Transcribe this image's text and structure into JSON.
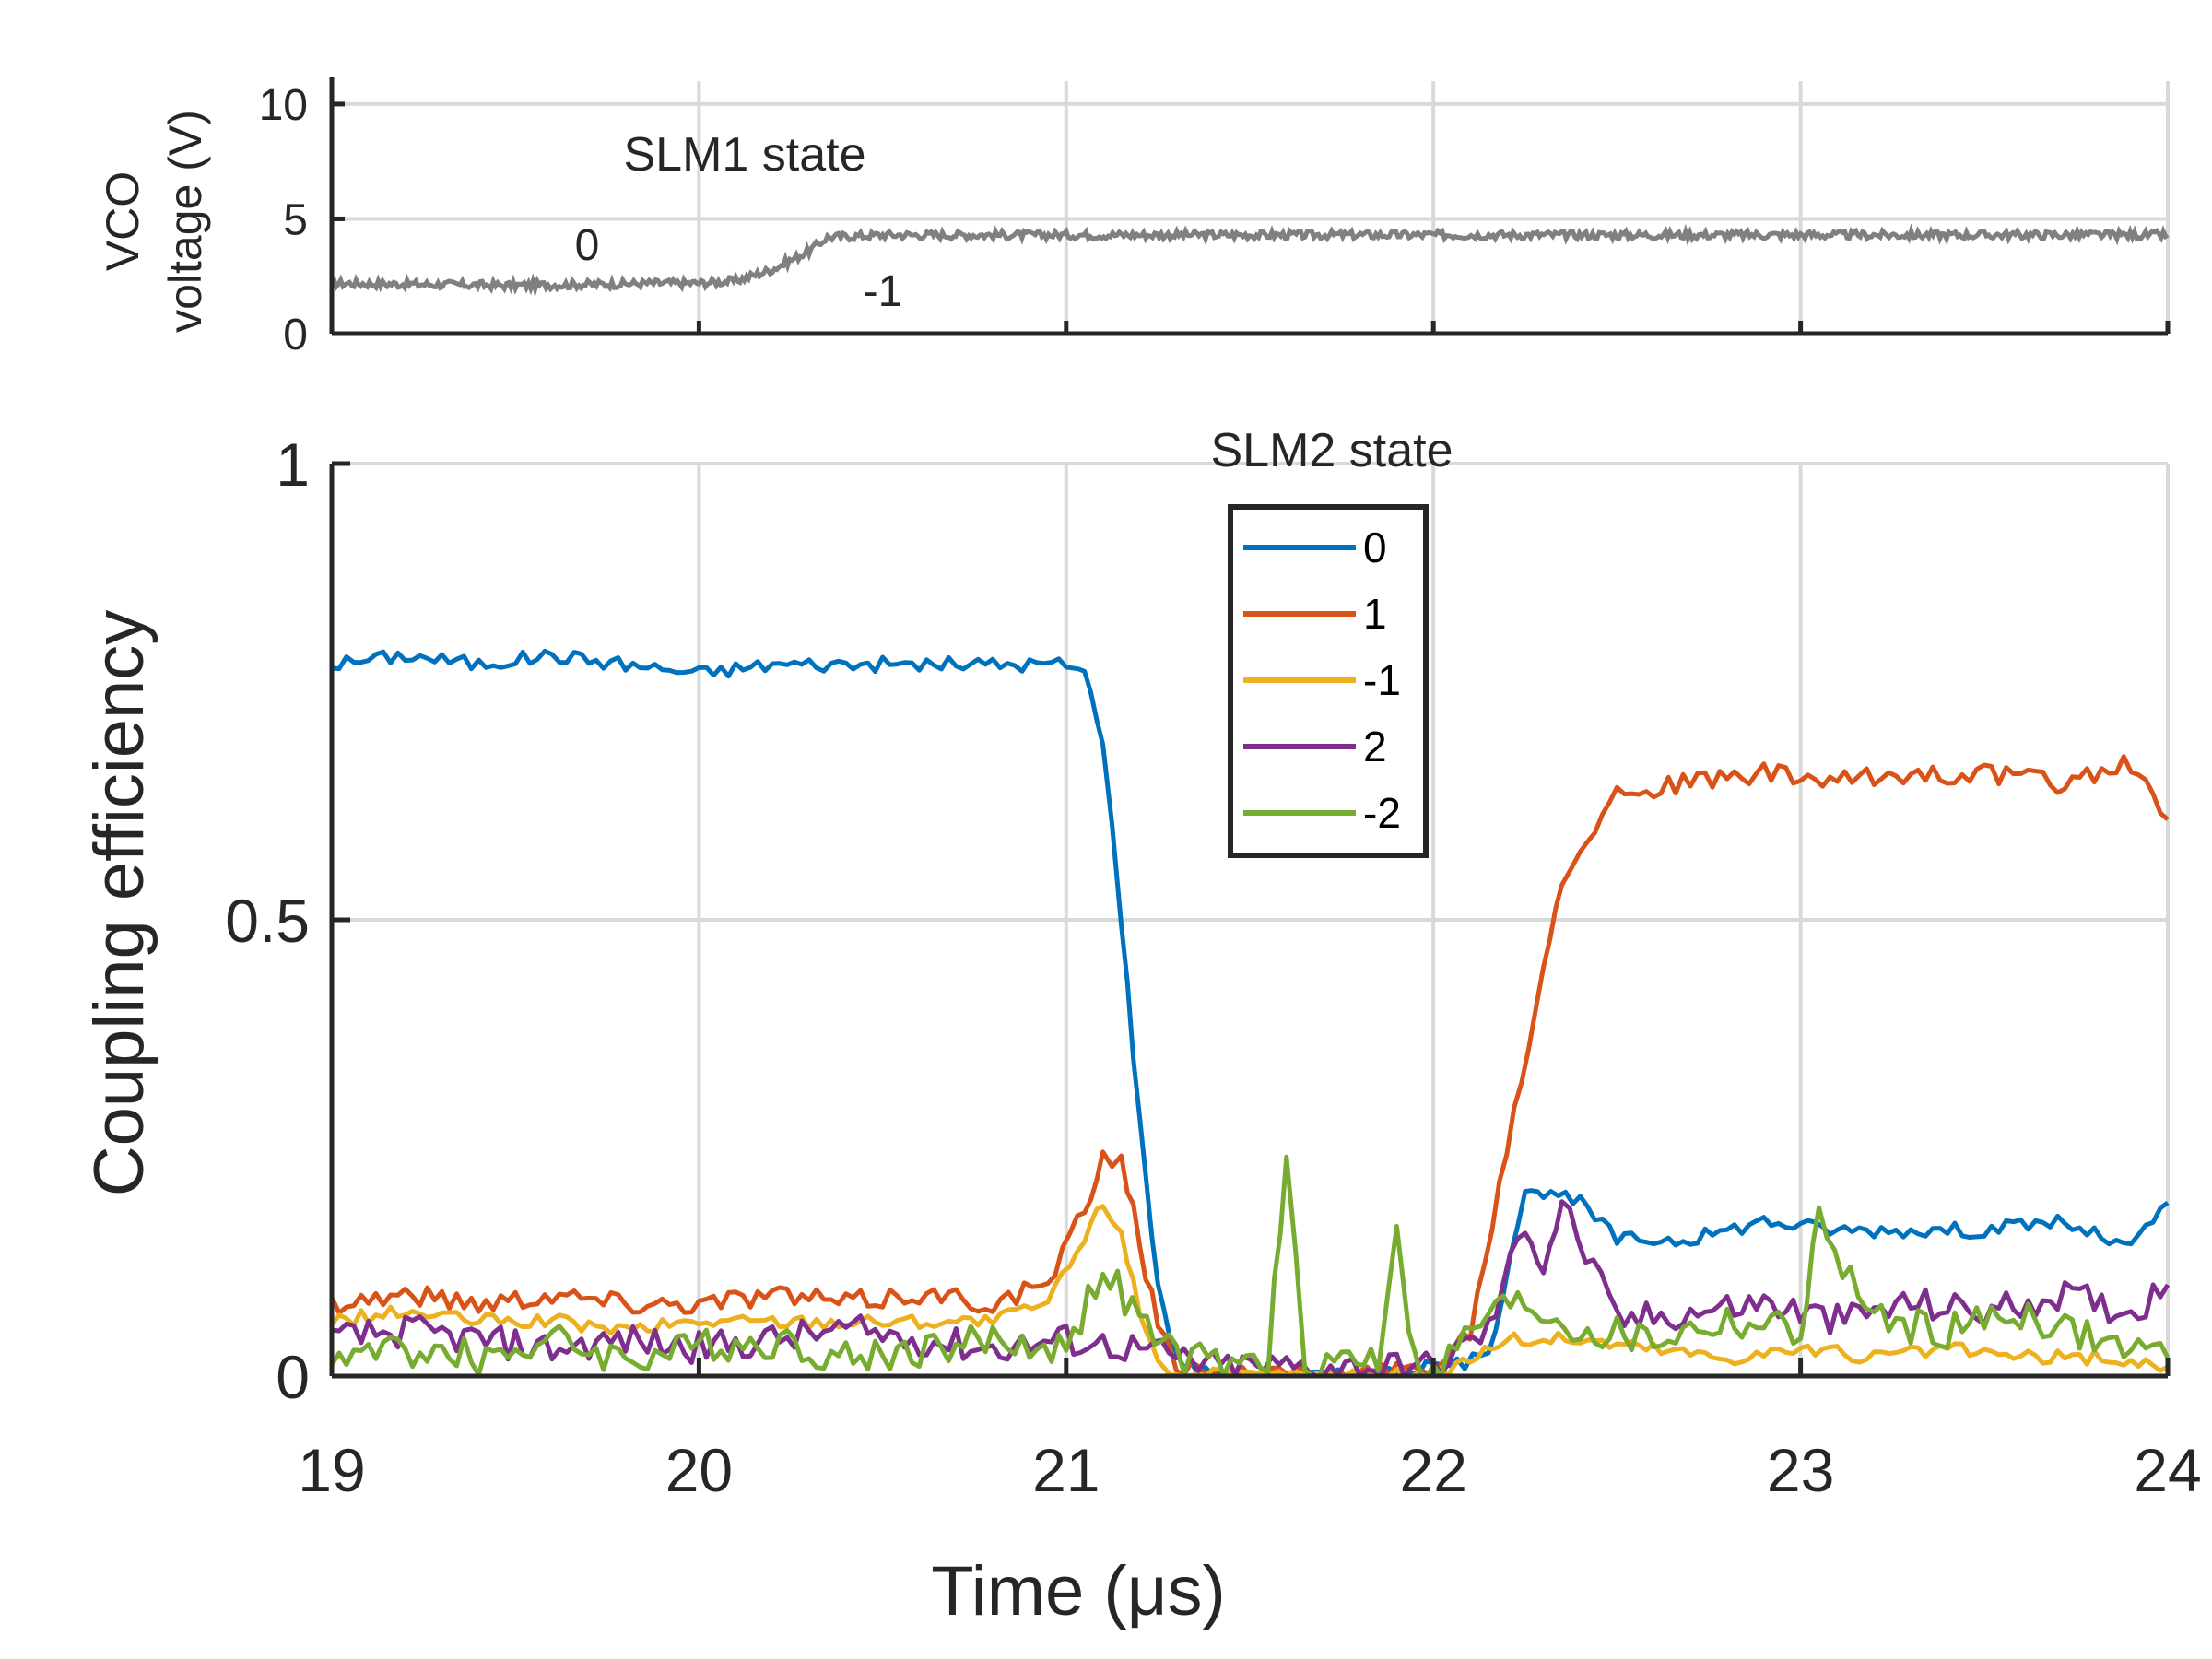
{
  "chart_data": [
    {
      "type": "line",
      "ylabel": [
        "VCO",
        "voltage (V)"
      ],
      "xlabel": "",
      "xlim": [
        19,
        24
      ],
      "ylim": [
        0,
        11
      ],
      "yticks": [
        "0",
        "5",
        "10"
      ],
      "grid": true,
      "annotations": {
        "title": "SLM1 state",
        "state_a": "0",
        "state_b": "-1"
      },
      "series": [
        {
          "color": "#808080",
          "x": [
            19.0,
            19.5,
            19.9,
            20.0,
            20.1,
            20.2,
            20.3,
            20.35,
            20.5,
            21.0,
            21.5,
            22.0,
            22.5,
            23.0,
            23.5,
            24.0
          ],
          "values": [
            2.2,
            2.1,
            2.2,
            2.2,
            2.3,
            2.8,
            3.6,
            4.2,
            4.3,
            4.3,
            4.3,
            4.3,
            4.3,
            4.3,
            4.3,
            4.3
          ]
        }
      ]
    },
    {
      "type": "line",
      "xlabel": "Time (μs)",
      "ylabel": "Coupling efficiency",
      "xlim": [
        19,
        24
      ],
      "ylim": [
        0,
        1
      ],
      "xticks": [
        "19",
        "20",
        "21",
        "22",
        "23",
        "24"
      ],
      "yticks": [
        "0",
        "0.5",
        "1"
      ],
      "grid": true,
      "legend": {
        "title": "SLM2 state",
        "position": "top-center"
      },
      "series": [
        {
          "name": "0",
          "color": "#0072BD",
          "x": [
            19.0,
            19.2,
            19.4,
            19.6,
            19.8,
            20.0,
            20.2,
            20.4,
            20.6,
            20.8,
            21.0,
            21.05,
            21.1,
            21.15,
            21.2,
            21.25,
            21.3,
            21.4,
            21.6,
            21.8,
            22.0,
            22.15,
            22.25,
            22.3,
            22.4,
            22.5,
            22.7,
            22.9,
            23.1,
            23.3,
            23.5,
            23.7,
            23.9,
            24.0
          ],
          "values": [
            0.78,
            0.79,
            0.78,
            0.79,
            0.78,
            0.77,
            0.78,
            0.78,
            0.78,
            0.78,
            0.78,
            0.77,
            0.7,
            0.5,
            0.28,
            0.1,
            0.02,
            0.0,
            0.0,
            0.0,
            0.01,
            0.02,
            0.21,
            0.2,
            0.19,
            0.15,
            0.15,
            0.17,
            0.16,
            0.16,
            0.16,
            0.17,
            0.14,
            0.19
          ]
        },
        {
          "name": "1",
          "color": "#D95319",
          "x": [
            19.0,
            19.2,
            19.4,
            19.6,
            19.8,
            20.0,
            20.2,
            20.4,
            20.6,
            20.8,
            20.95,
            21.05,
            21.1,
            21.15,
            21.2,
            21.25,
            21.3,
            21.5,
            21.8,
            22.0,
            22.1,
            22.2,
            22.3,
            22.35,
            22.4,
            22.5,
            22.7,
            22.9,
            23.1,
            23.3,
            23.5,
            23.7,
            23.9,
            24.0
          ],
          "values": [
            0.08,
            0.09,
            0.08,
            0.09,
            0.08,
            0.08,
            0.09,
            0.08,
            0.09,
            0.08,
            0.1,
            0.18,
            0.24,
            0.24,
            0.15,
            0.05,
            0.01,
            0.0,
            0.0,
            0.01,
            0.05,
            0.25,
            0.45,
            0.55,
            0.58,
            0.64,
            0.65,
            0.66,
            0.65,
            0.66,
            0.66,
            0.65,
            0.67,
            0.61
          ]
        },
        {
          "name": "-1",
          "color": "#EDB120",
          "x": [
            19.0,
            19.2,
            19.4,
            19.6,
            19.8,
            20.0,
            20.2,
            20.4,
            20.6,
            20.8,
            20.95,
            21.05,
            21.1,
            21.15,
            21.2,
            21.25,
            21.3,
            21.5,
            21.8,
            22.0,
            22.2,
            22.4,
            22.6,
            22.8,
            23.0,
            23.2,
            23.4,
            23.6,
            23.8,
            24.0
          ],
          "values": [
            0.06,
            0.07,
            0.06,
            0.06,
            0.05,
            0.06,
            0.06,
            0.06,
            0.06,
            0.06,
            0.08,
            0.15,
            0.19,
            0.16,
            0.07,
            0.02,
            0.0,
            0.0,
            0.0,
            0.0,
            0.04,
            0.04,
            0.03,
            0.02,
            0.03,
            0.02,
            0.03,
            0.02,
            0.02,
            0.01
          ]
        },
        {
          "name": "2",
          "color": "#7E2F8E",
          "x": [
            19.0,
            19.2,
            19.4,
            19.6,
            19.8,
            20.0,
            20.2,
            20.4,
            20.6,
            20.8,
            21.0,
            21.2,
            21.4,
            21.6,
            21.8,
            22.0,
            22.15,
            22.25,
            22.3,
            22.35,
            22.5,
            22.7,
            22.9,
            23.1,
            23.3,
            23.5,
            23.7,
            23.9,
            24.0
          ],
          "values": [
            0.04,
            0.05,
            0.04,
            0.03,
            0.04,
            0.03,
            0.04,
            0.05,
            0.04,
            0.03,
            0.04,
            0.03,
            0.01,
            0.01,
            0.01,
            0.01,
            0.05,
            0.17,
            0.12,
            0.19,
            0.06,
            0.07,
            0.08,
            0.06,
            0.08,
            0.07,
            0.09,
            0.07,
            0.1
          ]
        },
        {
          "name": "-2",
          "color": "#77AC30",
          "x": [
            19.0,
            19.2,
            19.4,
            19.6,
            19.8,
            20.0,
            20.2,
            20.4,
            20.6,
            20.8,
            21.0,
            21.1,
            21.2,
            21.3,
            21.45,
            21.55,
            21.6,
            21.65,
            21.75,
            21.85,
            21.9,
            21.95,
            22.0,
            22.15,
            22.25,
            22.4,
            22.6,
            22.8,
            23.0,
            23.05,
            23.2,
            23.4,
            23.6,
            23.8,
            24.0
          ],
          "values": [
            0.02,
            0.03,
            0.02,
            0.04,
            0.02,
            0.03,
            0.04,
            0.02,
            0.03,
            0.04,
            0.03,
            0.12,
            0.06,
            0.02,
            0.01,
            0.02,
            0.23,
            0.01,
            0.02,
            0.02,
            0.17,
            0.01,
            0.0,
            0.07,
            0.08,
            0.05,
            0.04,
            0.06,
            0.05,
            0.17,
            0.06,
            0.05,
            0.07,
            0.04,
            0.02
          ]
        }
      ]
    }
  ]
}
